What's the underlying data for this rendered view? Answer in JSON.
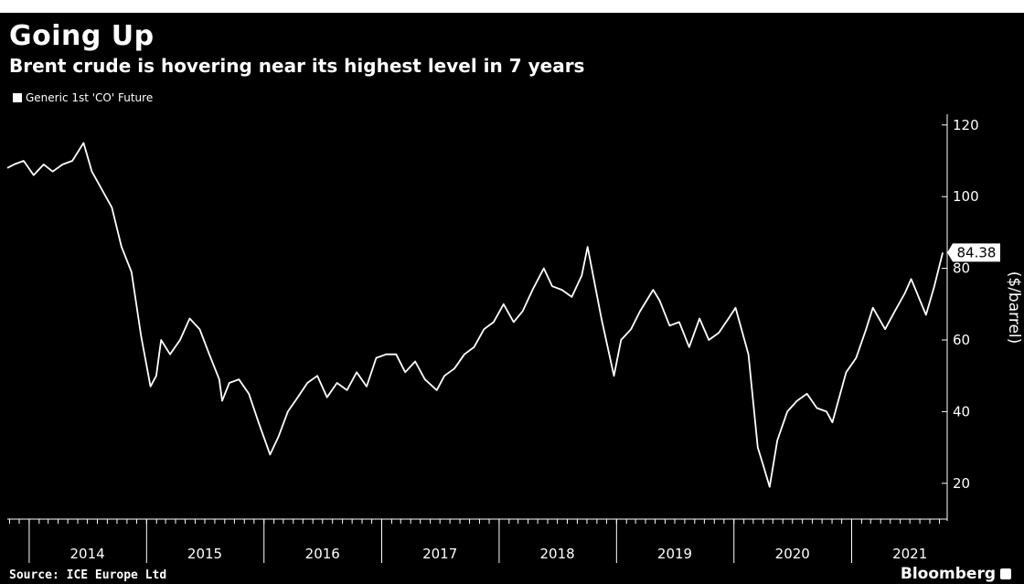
{
  "header": {
    "title": "Going Up",
    "subtitle": "Brent crude is hovering near its highest level in 7 years"
  },
  "footer": {
    "source": "Source: ICE Europe Ltd",
    "brand": "Bloomberg"
  },
  "colors": {
    "background": "#000000",
    "line": "#ffffff",
    "text": "#ffffff"
  },
  "chart_data": {
    "type": "line",
    "title": "Going Up",
    "subtitle": "Brent crude is hovering near its highest level in 7 years",
    "ylabel": "($/barrel)",
    "xlabel": "",
    "ylim": [
      10,
      123
    ],
    "yticks": [
      20,
      40,
      60,
      80,
      100,
      120
    ],
    "xticks": [
      "2014",
      "2015",
      "2016",
      "2017",
      "2018",
      "2019",
      "2020",
      "2021"
    ],
    "xlim": [
      "2013-10-25",
      "2021-10-25"
    ],
    "grid": false,
    "y_axis_side": "right",
    "legend_position": "top-left",
    "last_value_label": "84.38",
    "series": [
      {
        "name": "Generic 1st 'CO' Future",
        "x": [
          "2013-10-25",
          "2013-11-15",
          "2013-12-15",
          "2014-01-15",
          "2014-02-15",
          "2014-03-15",
          "2014-04-15",
          "2014-05-15",
          "2014-06-19",
          "2014-07-15",
          "2014-08-15",
          "2014-09-15",
          "2014-10-15",
          "2014-11-15",
          "2014-12-15",
          "2015-01-13",
          "2015-01-31",
          "2015-02-15",
          "2015-03-15",
          "2015-04-15",
          "2015-05-15",
          "2015-06-15",
          "2015-07-15",
          "2015-08-15",
          "2015-08-24",
          "2015-09-15",
          "2015-10-15",
          "2015-11-15",
          "2015-12-15",
          "2016-01-20",
          "2016-02-15",
          "2016-03-15",
          "2016-04-15",
          "2016-05-15",
          "2016-06-15",
          "2016-07-15",
          "2016-08-15",
          "2016-09-15",
          "2016-10-15",
          "2016-11-15",
          "2016-12-15",
          "2017-01-15",
          "2017-02-15",
          "2017-03-15",
          "2017-04-15",
          "2017-05-15",
          "2017-06-21",
          "2017-07-15",
          "2017-08-15",
          "2017-09-15",
          "2017-10-15",
          "2017-11-15",
          "2017-12-15",
          "2018-01-15",
          "2018-02-15",
          "2018-03-15",
          "2018-04-15",
          "2018-05-20",
          "2018-06-15",
          "2018-07-15",
          "2018-08-15",
          "2018-09-15",
          "2018-10-03",
          "2018-11-15",
          "2018-12-24",
          "2019-01-15",
          "2019-02-15",
          "2019-03-15",
          "2019-04-25",
          "2019-05-15",
          "2019-06-15",
          "2019-07-15",
          "2019-08-15",
          "2019-09-16",
          "2019-10-15",
          "2019-11-15",
          "2019-12-15",
          "2020-01-06",
          "2020-02-15",
          "2020-03-15",
          "2020-04-01",
          "2020-04-21",
          "2020-05-15",
          "2020-06-15",
          "2020-07-15",
          "2020-08-15",
          "2020-09-15",
          "2020-10-15",
          "2020-11-02",
          "2020-12-15",
          "2021-01-15",
          "2021-02-15",
          "2021-03-08",
          "2021-04-15",
          "2021-05-15",
          "2021-06-15",
          "2021-07-05",
          "2021-08-20",
          "2021-09-15",
          "2021-10-11"
        ],
        "values": [
          108,
          109,
          110,
          106,
          109,
          107,
          109,
          110,
          115,
          107,
          102,
          97,
          86,
          79,
          61,
          47,
          50,
          60,
          56,
          60,
          66,
          63,
          56,
          49,
          43,
          48,
          49,
          45,
          37,
          28,
          33,
          40,
          44,
          48,
          50,
          44,
          48,
          46,
          51,
          47,
          55,
          56,
          56,
          51,
          54,
          49,
          46,
          50,
          52,
          56,
          58,
          63,
          65,
          70,
          65,
          68,
          74,
          80,
          75,
          74,
          72,
          78,
          86,
          66,
          50,
          60,
          63,
          68,
          74,
          71,
          64,
          65,
          58,
          66,
          60,
          62,
          66,
          69,
          56,
          30,
          25,
          19,
          32,
          40,
          43,
          45,
          41,
          40,
          37,
          51,
          55,
          63,
          69,
          63,
          68,
          73,
          77,
          67,
          75,
          84.38
        ]
      }
    ]
  }
}
